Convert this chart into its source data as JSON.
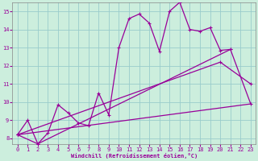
{
  "bg_color": "#cceedd",
  "grid_color": "#99cccc",
  "line_color": "#990099",
  "xlabel": "Windchill (Refroidissement éolien,°C)",
  "xlim": [
    -0.5,
    23.5
  ],
  "ylim": [
    7.7,
    15.5
  ],
  "yticks": [
    8,
    9,
    10,
    11,
    12,
    13,
    14,
    15
  ],
  "xticks": [
    0,
    1,
    2,
    3,
    4,
    5,
    6,
    7,
    8,
    9,
    10,
    11,
    12,
    13,
    14,
    15,
    16,
    17,
    18,
    19,
    20,
    21,
    22,
    23
  ],
  "line1_x": [
    0,
    1,
    2,
    3,
    4,
    5,
    6,
    7,
    8,
    9,
    10,
    11,
    12,
    13,
    14,
    15,
    16,
    17,
    18,
    19,
    20,
    21
  ],
  "line1_y": [
    8.2,
    9.0,
    7.7,
    8.3,
    9.85,
    9.4,
    8.85,
    8.7,
    10.5,
    9.3,
    13.0,
    14.6,
    14.85,
    14.35,
    12.8,
    15.0,
    15.5,
    14.0,
    13.9,
    14.1,
    12.85,
    12.9
  ],
  "line2_x": [
    0,
    2,
    21,
    23
  ],
  "line2_y": [
    8.2,
    7.7,
    12.9,
    9.9
  ],
  "line3_x": [
    0,
    20,
    23
  ],
  "line3_y": [
    8.2,
    12.2,
    11.0
  ],
  "line4_x": [
    0,
    23
  ],
  "line4_y": [
    8.2,
    9.9
  ]
}
